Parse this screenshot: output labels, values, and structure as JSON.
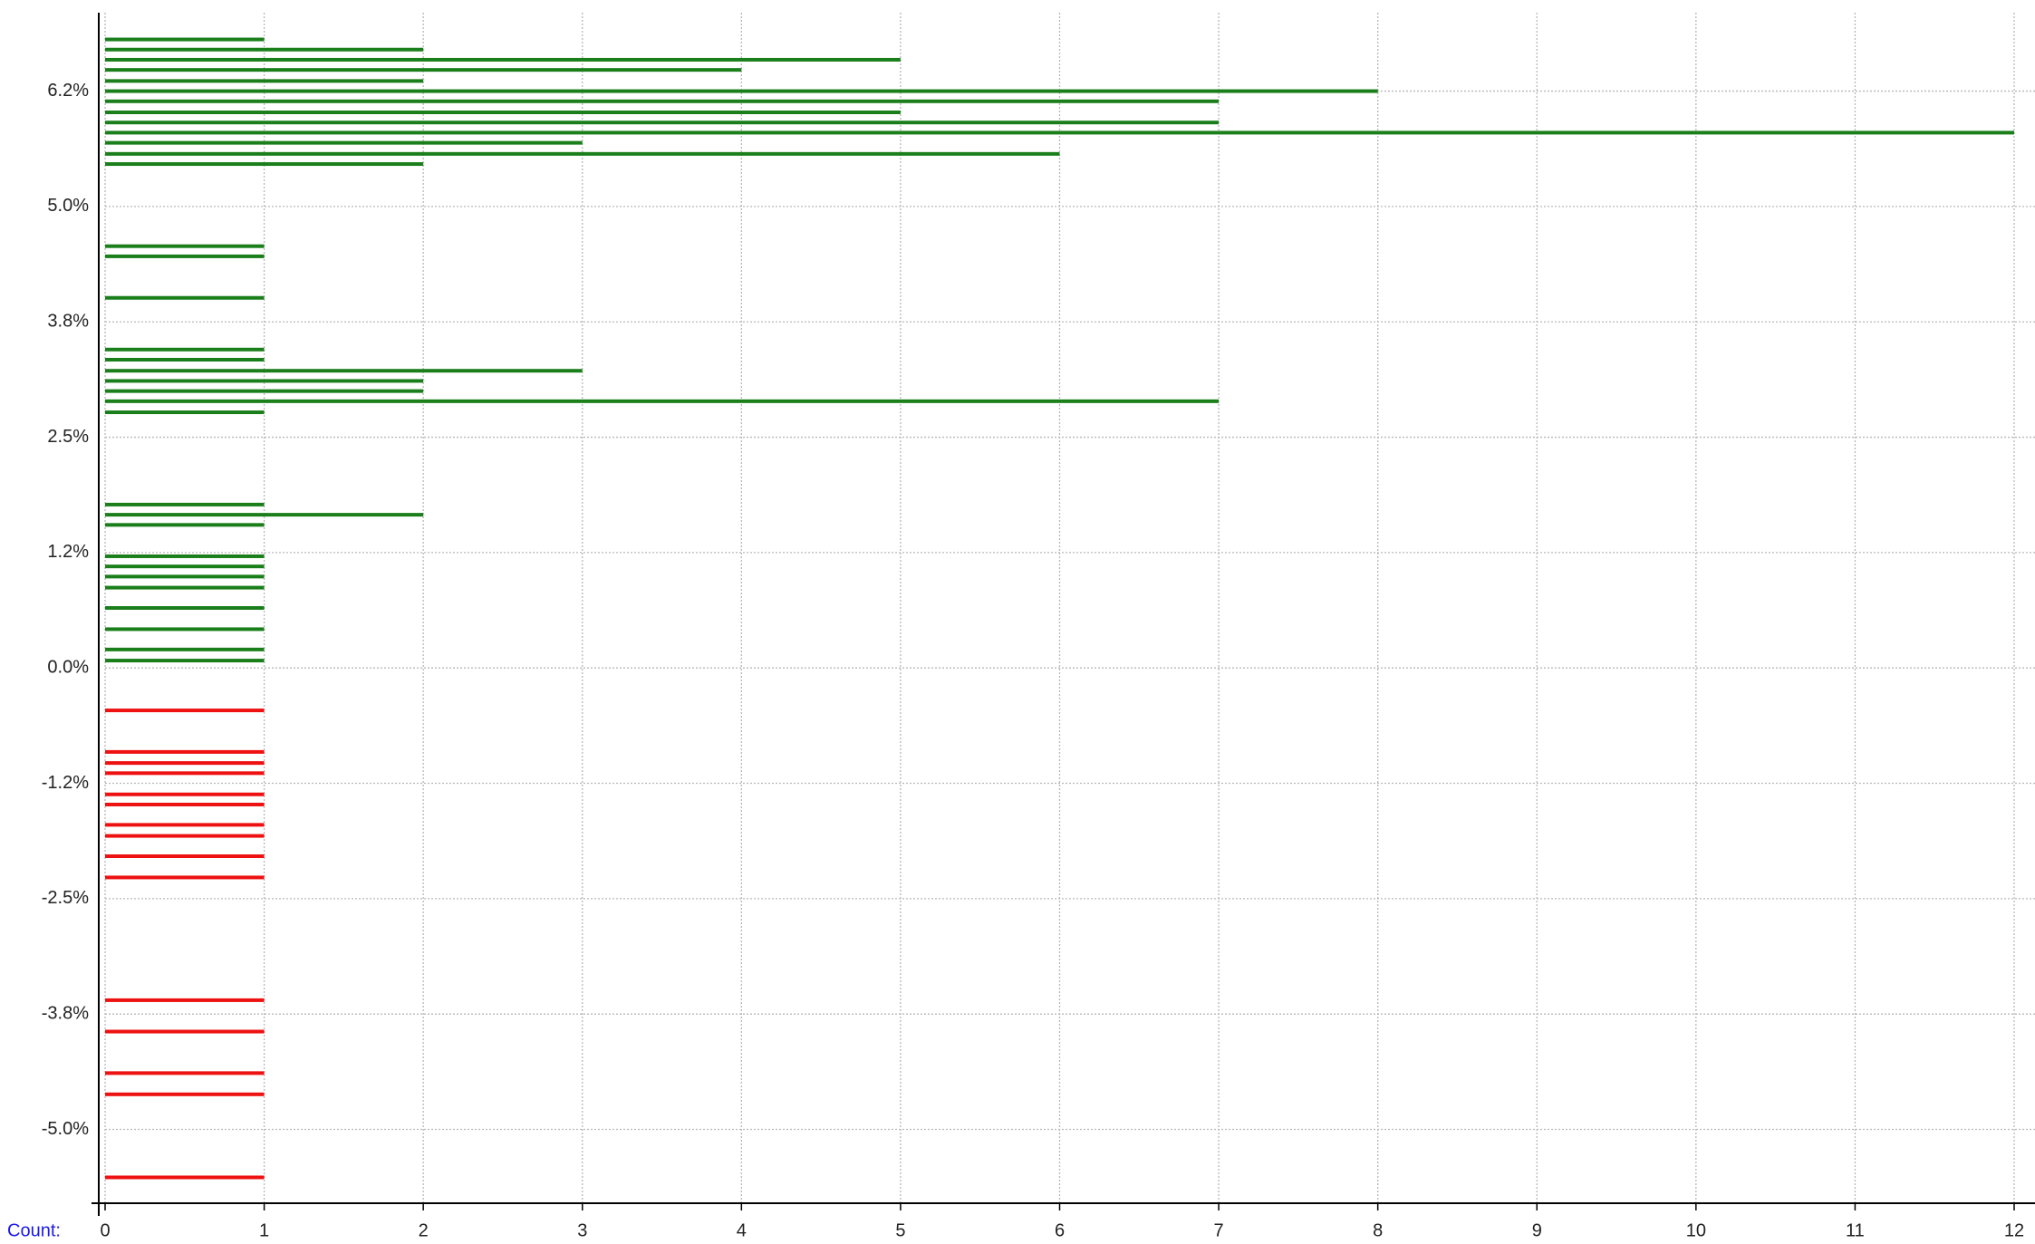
{
  "chart_data": {
    "type": "bar",
    "orientation": "horizontal",
    "axis_label": "Count:",
    "series": [
      {
        "color": "#1a7f1a",
        "y": [
          6.81,
          6.7,
          6.59,
          6.48,
          6.36,
          6.25,
          6.14,
          6.02,
          5.91,
          5.8,
          5.69,
          5.57,
          5.46,
          4.57,
          4.46,
          4.01,
          3.45,
          3.34,
          3.22,
          3.11,
          3.0,
          2.89,
          2.77,
          1.77,
          1.66,
          1.55,
          1.21,
          1.1,
          0.99,
          0.87,
          0.65,
          0.42,
          0.2,
          0.08
        ],
        "values": [
          1,
          2,
          5,
          4,
          2,
          8,
          7,
          5,
          7,
          12,
          3,
          6,
          2,
          1,
          1,
          1,
          1,
          1,
          3,
          2,
          2,
          7,
          1,
          1,
          2,
          1,
          1,
          1,
          1,
          1,
          1,
          1,
          1,
          1
        ]
      },
      {
        "color": "#ee1111",
        "y": [
          -0.46,
          -0.91,
          -1.03,
          -1.14,
          -1.37,
          -1.48,
          -1.7,
          -1.82,
          -2.04,
          -2.27,
          -3.6,
          -3.94,
          -4.39,
          -4.62,
          -5.52
        ],
        "values": [
          1,
          1,
          1,
          1,
          1,
          1,
          1,
          1,
          1,
          1,
          1,
          1,
          1,
          1,
          1
        ]
      }
    ],
    "xlim": [
      0,
      12
    ],
    "xticks": [
      0,
      1,
      2,
      3,
      4,
      5,
      6,
      7,
      8,
      9,
      10,
      11,
      12
    ],
    "ylim": [
      -5.8,
      7.1
    ],
    "yticks": [
      {
        "value": 6.25,
        "label": "6.2%"
      },
      {
        "value": 5.0,
        "label": "5.0%"
      },
      {
        "value": 3.75,
        "label": "3.8%"
      },
      {
        "value": 2.5,
        "label": "2.5%"
      },
      {
        "value": 1.25,
        "label": "1.2%"
      },
      {
        "value": 0,
        "label": "0.0%"
      },
      {
        "value": -1.25,
        "label": "-1.2%"
      },
      {
        "value": -2.5,
        "label": "-2.5%"
      },
      {
        "value": -3.75,
        "label": "-3.8%"
      },
      {
        "value": -5.0,
        "label": "-5.0%"
      }
    ],
    "grid": true
  }
}
